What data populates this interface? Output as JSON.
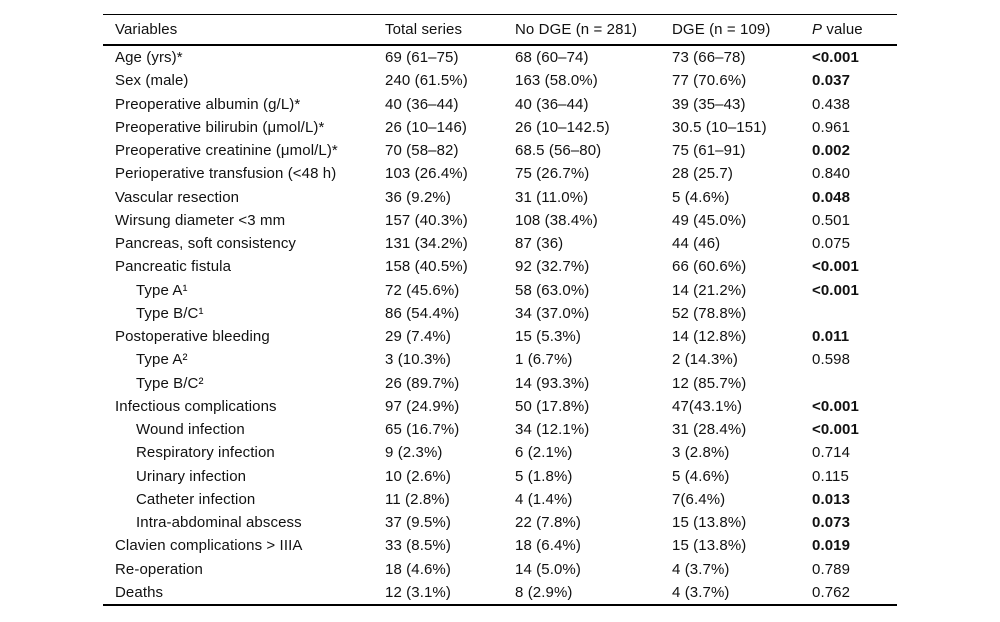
{
  "table": {
    "header": {
      "variables": "Variables",
      "total": "Total series",
      "no_dge": "No DGE (n = 281)",
      "dge": "DGE (n = 109)",
      "p_italic": "P",
      "p_rest": " value"
    },
    "rows": [
      {
        "variable": "Age (yrs)*",
        "indent": false,
        "total": "69 (61–75)",
        "no_dge": "68 (60–74)",
        "dge": "73 (66–78)",
        "p": "<0.001",
        "p_bold": true
      },
      {
        "variable": "Sex (male)",
        "indent": false,
        "total": "240 (61.5%)",
        "no_dge": "163 (58.0%)",
        "dge": "77 (70.6%)",
        "p": "0.037",
        "p_bold": true
      },
      {
        "variable": "Preoperative albumin (g/L)*",
        "indent": false,
        "total": "40 (36–44)",
        "no_dge": "40 (36–44)",
        "dge": "39 (35–43)",
        "p": "0.438",
        "p_bold": false
      },
      {
        "variable": "Preoperative bilirubin (μmol/L)*",
        "indent": false,
        "total": "26 (10–146)",
        "no_dge": "26 (10–142.5)",
        "dge": "30.5 (10–151)",
        "p": "0.961",
        "p_bold": false
      },
      {
        "variable": "Preoperative creatinine (μmol/L)*",
        "indent": false,
        "total": "70 (58–82)",
        "no_dge": "68.5 (56–80)",
        "dge": "75 (61–91)",
        "p": "0.002",
        "p_bold": true
      },
      {
        "variable": "Perioperative transfusion (<48 h)",
        "indent": false,
        "total": "103 (26.4%)",
        "no_dge": "75 (26.7%)",
        "dge": "28 (25.7)",
        "p": "0.840",
        "p_bold": false
      },
      {
        "variable": "Vascular resection",
        "indent": false,
        "total": "36 (9.2%)",
        "no_dge": "31 (11.0%)",
        "dge": "5 (4.6%)",
        "p": "0.048",
        "p_bold": true
      },
      {
        "variable": "Wirsung diameter <3 mm",
        "indent": false,
        "total": "157 (40.3%)",
        "no_dge": "108 (38.4%)",
        "dge": "49 (45.0%)",
        "p": "0.501",
        "p_bold": false
      },
      {
        "variable": "Pancreas, soft consistency",
        "indent": false,
        "total": "131 (34.2%)",
        "no_dge": "87 (36)",
        "dge": "44 (46)",
        "p": "0.075",
        "p_bold": false
      },
      {
        "variable": "Pancreatic fistula",
        "indent": false,
        "total": "158 (40.5%)",
        "no_dge": "92 (32.7%)",
        "dge": "66 (60.6%)",
        "p": "<0.001",
        "p_bold": true
      },
      {
        "variable": "Type A¹",
        "indent": true,
        "total": "72 (45.6%)",
        "no_dge": "58 (63.0%)",
        "dge": "14 (21.2%)",
        "p": "<0.001",
        "p_bold": true
      },
      {
        "variable": "Type B/C¹",
        "indent": true,
        "total": "86 (54.4%)",
        "no_dge": "34 (37.0%)",
        "dge": "52 (78.8%)",
        "p": "",
        "p_bold": false
      },
      {
        "variable": "Postoperative bleeding",
        "indent": false,
        "total": "29 (7.4%)",
        "no_dge": "15 (5.3%)",
        "dge": "14 (12.8%)",
        "p": "0.011",
        "p_bold": true
      },
      {
        "variable": "Type A²",
        "indent": true,
        "total": "3 (10.3%)",
        "no_dge": "1 (6.7%)",
        "dge": "2 (14.3%)",
        "p": "0.598",
        "p_bold": false
      },
      {
        "variable": "Type B/C²",
        "indent": true,
        "total": "26 (89.7%)",
        "no_dge": "14 (93.3%)",
        "dge": "12 (85.7%)",
        "p": "",
        "p_bold": false
      },
      {
        "variable": "Infectious complications",
        "indent": false,
        "total": "97 (24.9%)",
        "no_dge": "50 (17.8%)",
        "dge": "47(43.1%)",
        "p": "<0.001",
        "p_bold": true
      },
      {
        "variable": "Wound infection",
        "indent": true,
        "total": "65 (16.7%)",
        "no_dge": "34 (12.1%)",
        "dge": "31 (28.4%)",
        "p": "<0.001",
        "p_bold": true
      },
      {
        "variable": "Respiratory infection",
        "indent": true,
        "total": "9 (2.3%)",
        "no_dge": "6 (2.1%)",
        "dge": "3 (2.8%)",
        "p": "0.714",
        "p_bold": false
      },
      {
        "variable": "Urinary infection",
        "indent": true,
        "total": "10 (2.6%)",
        "no_dge": "5 (1.8%)",
        "dge": "5 (4.6%)",
        "p": "0.115",
        "p_bold": false
      },
      {
        "variable": "Catheter infection",
        "indent": true,
        "total": "11 (2.8%)",
        "no_dge": "4 (1.4%)",
        "dge": "7(6.4%)",
        "p": "0.013",
        "p_bold": true
      },
      {
        "variable": "Intra-abdominal abscess",
        "indent": true,
        "total": "37 (9.5%)",
        "no_dge": "22 (7.8%)",
        "dge": "15 (13.8%)",
        "p": "0.073",
        "p_bold": true
      },
      {
        "variable": "Clavien complications > IIIA",
        "indent": false,
        "total": "33 (8.5%)",
        "no_dge": "18 (6.4%)",
        "dge": "15 (13.8%)",
        "p": "0.019",
        "p_bold": true
      },
      {
        "variable": "Re-operation",
        "indent": false,
        "total": "18 (4.6%)",
        "no_dge": "14 (5.0%)",
        "dge": "4 (3.7%)",
        "p": "0.789",
        "p_bold": false
      },
      {
        "variable": "Deaths",
        "indent": false,
        "total": "12 (3.1%)",
        "no_dge": "8 (2.9%)",
        "dge": "4 (3.7%)",
        "p": "0.762",
        "p_bold": false
      }
    ],
    "colors": {
      "text": "#111111",
      "rule": "#000000",
      "background": "#ffffff"
    }
  }
}
